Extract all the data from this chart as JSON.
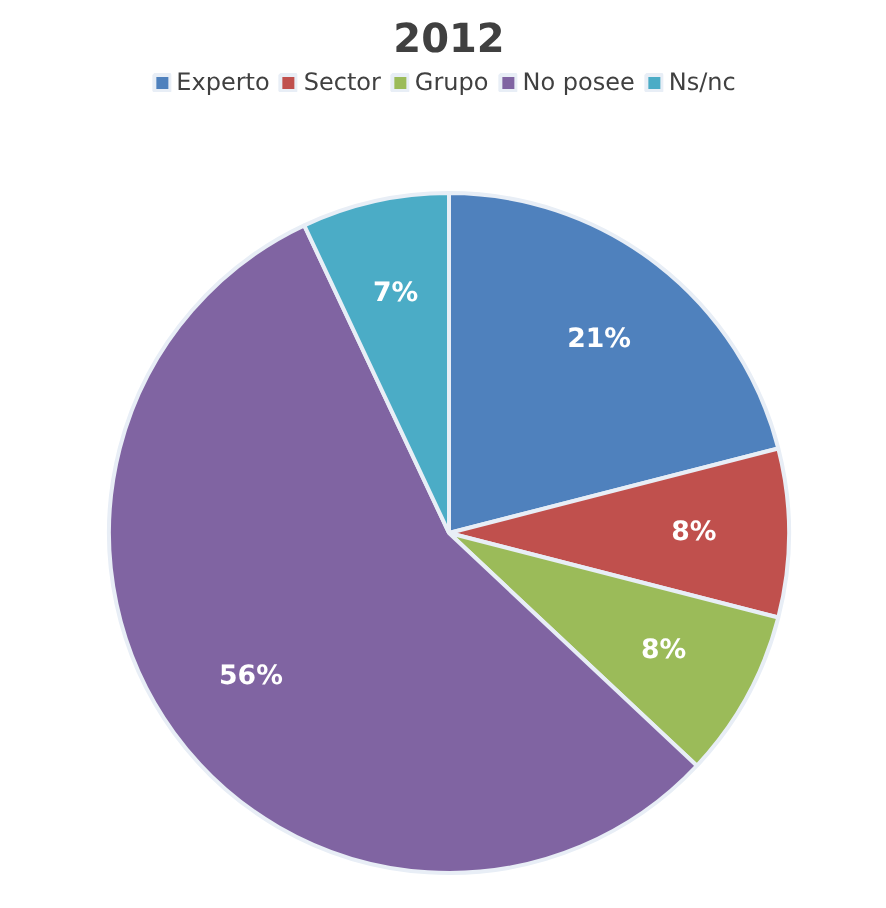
{
  "chart_data": {
    "type": "pie",
    "title": "2012",
    "categories": [
      "Experto",
      "Sector",
      "Grupo",
      "No posee",
      "Ns/nc"
    ],
    "values": [
      21,
      8,
      8,
      56,
      7
    ],
    "colors": [
      "#4f81bd",
      "#c0504d",
      "#9bbb59",
      "#8064a2",
      "#4bacc6"
    ],
    "value_labels": [
      "21%",
      "8%",
      "8%",
      "56%",
      "7%"
    ],
    "legend": "top"
  }
}
